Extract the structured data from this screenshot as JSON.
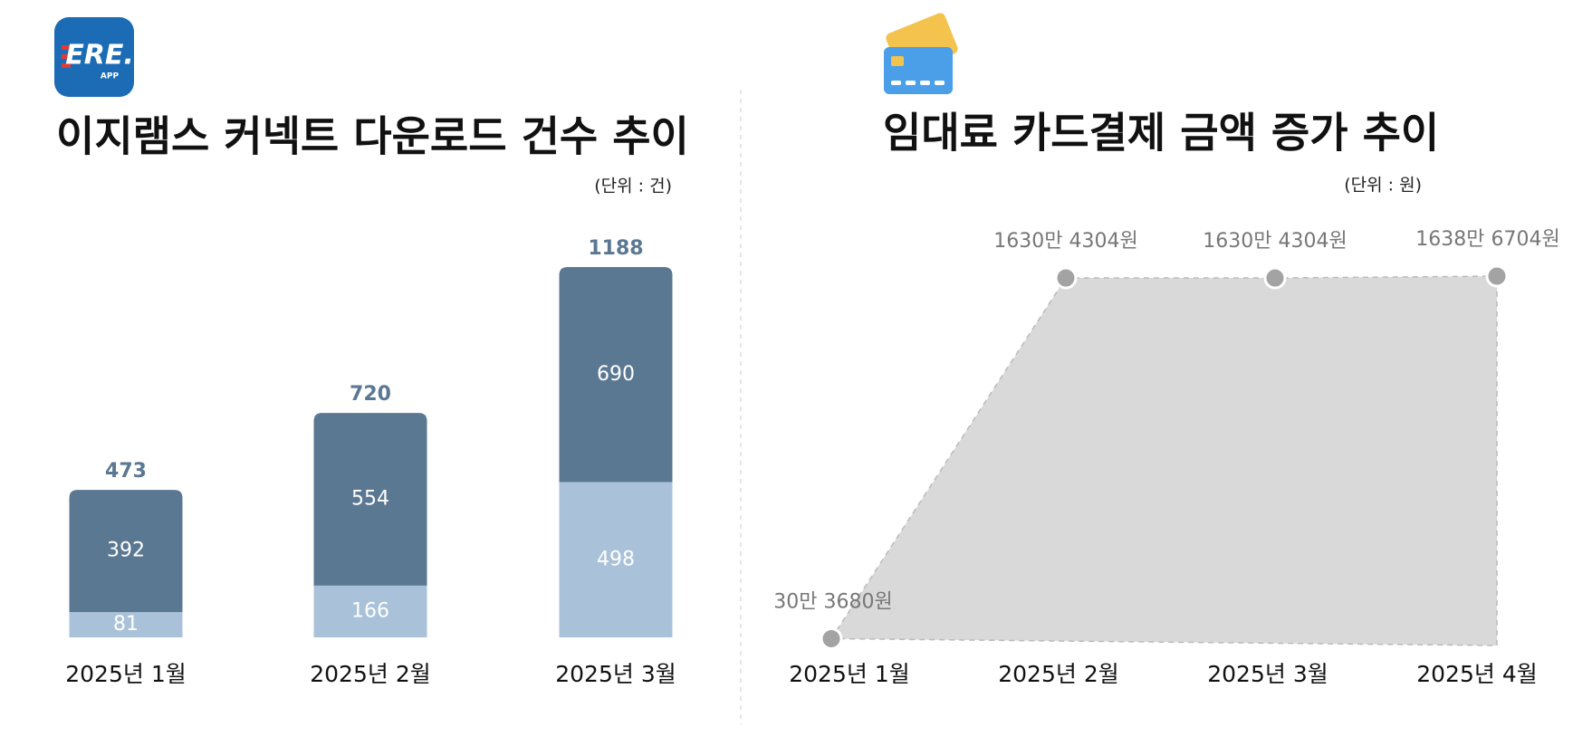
{
  "logo": {
    "text": "ERE.",
    "sub": "APP"
  },
  "chart_data": [
    {
      "type": "stacked-bar",
      "title": "이지램스 커넥트 다운로드 건수 추이",
      "unit": "(단위 : 건)",
      "categories": [
        "2025년 1월",
        "2025년 2월",
        "2025년 3월"
      ],
      "series": [
        {
          "name": null,
          "color": "#a9c2d9",
          "values": [
            81,
            166,
            498
          ]
        },
        {
          "name": null,
          "color": "#5b7893",
          "values": [
            392,
            554,
            690
          ]
        }
      ],
      "totals": [
        473,
        720,
        1188
      ],
      "total_color": "#5b7893"
    },
    {
      "type": "area",
      "title": "임대료 카드결제 금액 증가 추이",
      "unit": "(단위 : 원)",
      "categories": [
        "2025년 1월",
        "2025년 2월",
        "2025년 3월",
        "2025년 4월"
      ],
      "values": [
        303680,
        16304304,
        16304304,
        16386704
      ],
      "value_labels": [
        "30만 3680원",
        "1630만 4304원",
        "1630만 4304원",
        "1638만 6704원"
      ],
      "color": "#d9d9d9",
      "point_color": "#a3a3a3"
    }
  ]
}
